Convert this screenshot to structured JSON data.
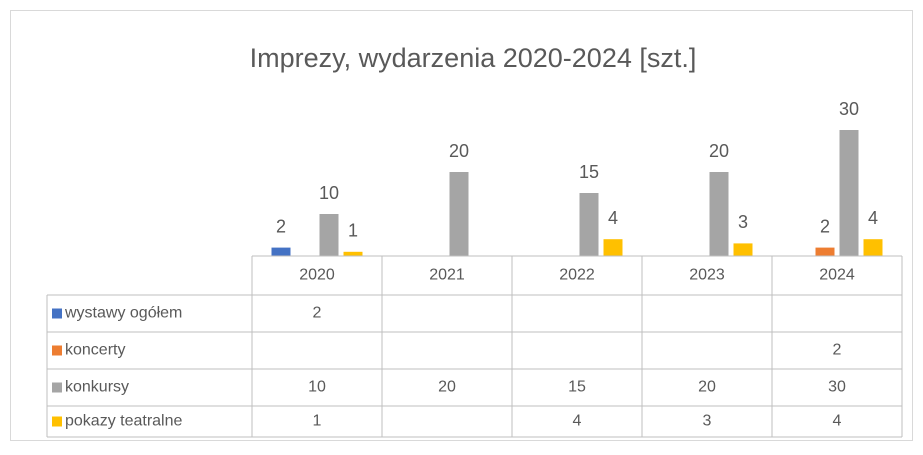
{
  "chart_data": {
    "type": "bar",
    "title": "Imprezy, wydarzenia 2020-2024 [szt.]",
    "categories": [
      "2020",
      "2021",
      "2022",
      "2023",
      "2024"
    ],
    "series": [
      {
        "name": "wystawy ogółem",
        "color": "#4472c4",
        "values": [
          2,
          null,
          null,
          null,
          null
        ]
      },
      {
        "name": "koncerty",
        "color": "#ed7d31",
        "values": [
          null,
          null,
          null,
          null,
          2
        ]
      },
      {
        "name": "konkursy",
        "color": "#a5a5a5",
        "values": [
          10,
          20,
          15,
          20,
          30
        ]
      },
      {
        "name": "pokazy teatralne",
        "color": "#ffc000",
        "values": [
          1,
          null,
          4,
          3,
          4
        ]
      }
    ],
    "ylim": [
      0,
      35
    ]
  }
}
